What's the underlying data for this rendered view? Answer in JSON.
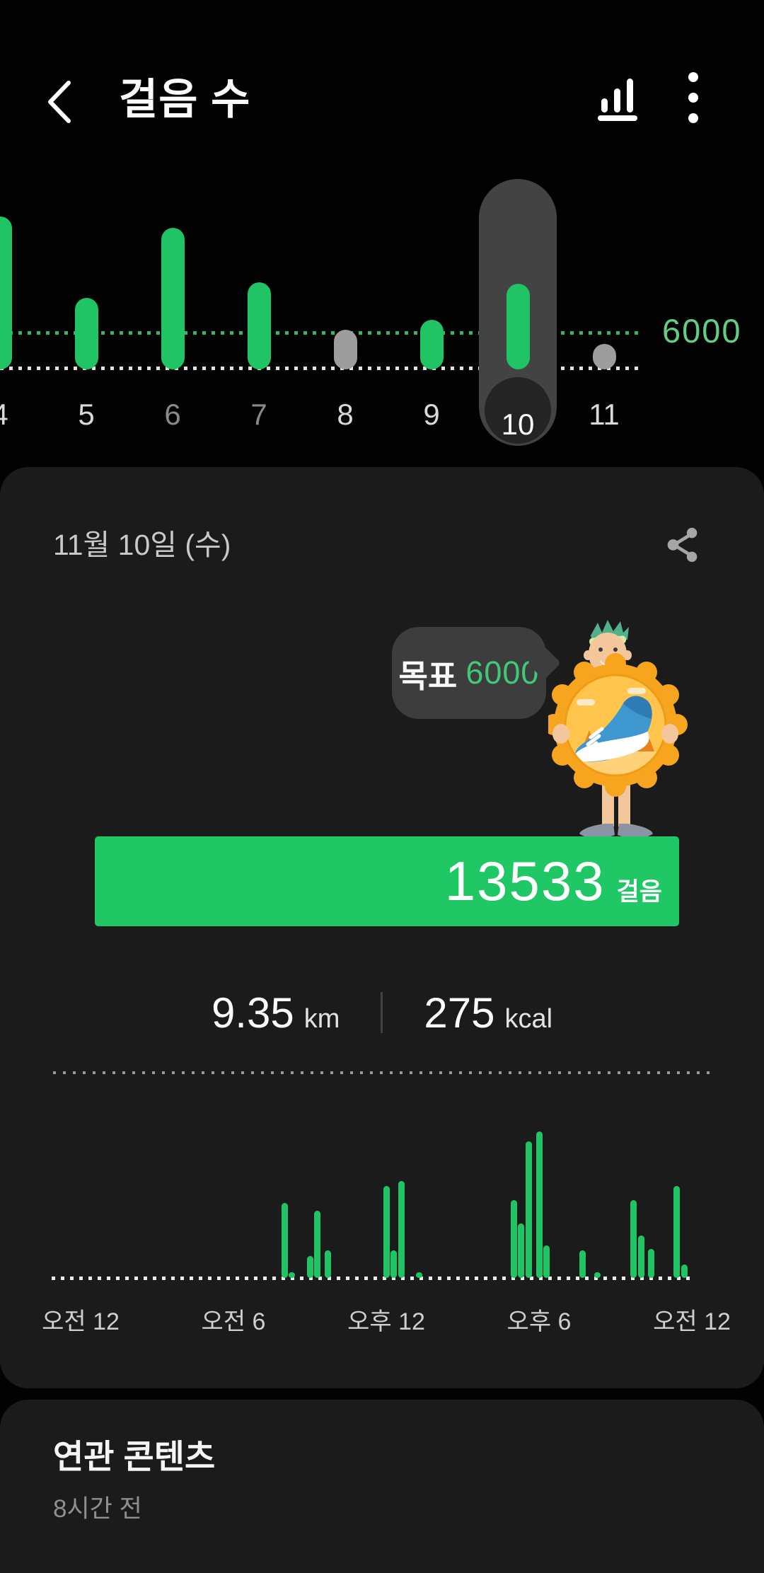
{
  "header": {
    "title": "걸음 수",
    "back_icon": "chevron-left",
    "chart_icon": "bar-chart",
    "menu_icon": "more-vertical"
  },
  "detail_card": {
    "date_label": "11월 10일 (수)",
    "share_icon": "share",
    "speech_bubble": {
      "goal_word": "목표",
      "goal_value": "6000"
    },
    "mascot": "medal-runner-character",
    "progress": {
      "steps": "13533",
      "unit": "걸음"
    },
    "stats": {
      "distance_value": "9.35",
      "distance_unit": "km",
      "calories_value": "275",
      "calories_unit": "kcal"
    }
  },
  "related_card": {
    "title": "연관 콘텐츠",
    "timestamp": "8시간 전"
  },
  "colors": {
    "accent_green": "#20c464",
    "goal_label_green": "#63cc86",
    "under_goal_gray": "#9d9d9d",
    "card_bg": "#1b1b1b",
    "selection_pill": "#434343",
    "bubble_bg": "#3d3d3d"
  },
  "chart_data": [
    {
      "id": "weekly_steps",
      "type": "bar",
      "categories": [
        "4",
        "5",
        "6",
        "7",
        "8",
        "9",
        "10",
        "11"
      ],
      "values": [
        25000,
        11200,
        23000,
        13800,
        5800,
        7400,
        13533,
        3400
      ],
      "goal_line": 6000,
      "goal_label": "6000",
      "selected_index": 6,
      "selected_value_exact": 13533,
      "below_goal_indices": [
        4,
        7
      ],
      "dimmed_label_indices": [
        2,
        3
      ],
      "ylim": [
        0,
        26000
      ],
      "grid": false,
      "legend": "none",
      "note": "steps per day; non-selected values estimated from bar heights vs 6000 goal line"
    },
    {
      "id": "hourly_steps",
      "type": "bar",
      "tick_labels": [
        "오전 12",
        "오전 6",
        "오후 12",
        "오후 6",
        "오전 12"
      ],
      "tick_hours": [
        0,
        6,
        12,
        18,
        24
      ],
      "bars": [
        {
          "hour": 8.0,
          "rel": 51
        },
        {
          "hour": 8.3,
          "rel": 2
        },
        {
          "hour": 9.0,
          "rel": 15
        },
        {
          "hour": 9.3,
          "rel": 46
        },
        {
          "hour": 9.7,
          "rel": 19
        },
        {
          "hour": 12.0,
          "rel": 63
        },
        {
          "hour": 12.3,
          "rel": 19
        },
        {
          "hour": 12.6,
          "rel": 66
        },
        {
          "hour": 13.3,
          "rel": 2
        },
        {
          "hour": 17.0,
          "rel": 53
        },
        {
          "hour": 17.3,
          "rel": 37
        },
        {
          "hour": 17.6,
          "rel": 93
        },
        {
          "hour": 18.0,
          "rel": 100
        },
        {
          "hour": 18.3,
          "rel": 22
        },
        {
          "hour": 19.7,
          "rel": 19
        },
        {
          "hour": 20.3,
          "rel": 2
        },
        {
          "hour": 21.7,
          "rel": 53
        },
        {
          "hour": 22.0,
          "rel": 29
        },
        {
          "hour": 22.4,
          "rel": 20
        },
        {
          "hour": 23.4,
          "rel": 63
        },
        {
          "hour": 23.7,
          "rel": 9
        }
      ],
      "grid": false,
      "note": "rel = bar height as % of tallest bar; no y-axis shown on screen"
    }
  ]
}
